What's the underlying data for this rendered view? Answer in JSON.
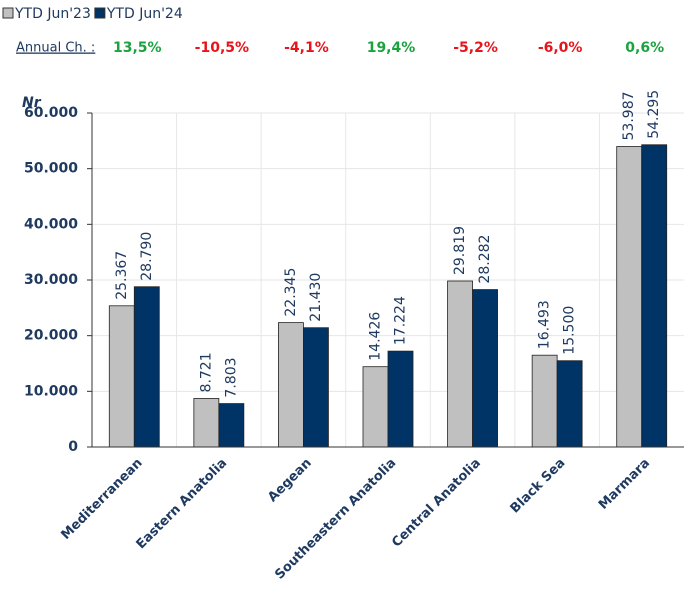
{
  "chart_data": {
    "type": "bar",
    "categories": [
      "Mediterranean",
      "Eastern Anatolia",
      "Aegean",
      "Southeastern Anatolia",
      "Central Anatolia",
      "Black Sea",
      "Marmara"
    ],
    "series": [
      {
        "name": "YTD Jun'23",
        "color": "#c0c0c0",
        "values": [
          25367,
          8721,
          22345,
          14426,
          29819,
          16493,
          53987
        ],
        "value_labels": [
          "25.367",
          "8.721",
          "22.345",
          "14.426",
          "29.819",
          "16.493",
          "53.987"
        ]
      },
      {
        "name": "YTD Jun'24",
        "color": "#003366",
        "values": [
          28790,
          7803,
          21430,
          17224,
          28282,
          15500,
          54295
        ],
        "value_labels": [
          "28.790",
          "7.803",
          "21.430",
          "17.224",
          "28.282",
          "15.500",
          "54.295"
        ]
      }
    ],
    "annual_change": {
      "label": "Annual Ch. :",
      "values": [
        13.5,
        -10.5,
        -4.1,
        19.4,
        -5.2,
        -6.0,
        0.6
      ],
      "value_labels": [
        "13,5%",
        "-10,5%",
        "-4,1%",
        "19,4%",
        "-5,2%",
        "-6,0%",
        "0,6%"
      ],
      "positive_color": "#1aa33f",
      "negative_color": "#e8141c"
    },
    "y_axis_label": "Nr",
    "ylim": [
      0,
      60000
    ],
    "yticks": [
      {
        "value": 0,
        "label": "0"
      },
      {
        "value": 10000,
        "label": "10.000"
      },
      {
        "value": 20000,
        "label": "20.000"
      },
      {
        "value": 30000,
        "label": "30.000"
      },
      {
        "value": 40000,
        "label": "40.000"
      },
      {
        "value": 50000,
        "label": "50.000"
      },
      {
        "value": 60000,
        "label": "60.000"
      }
    ],
    "grid": true
  }
}
